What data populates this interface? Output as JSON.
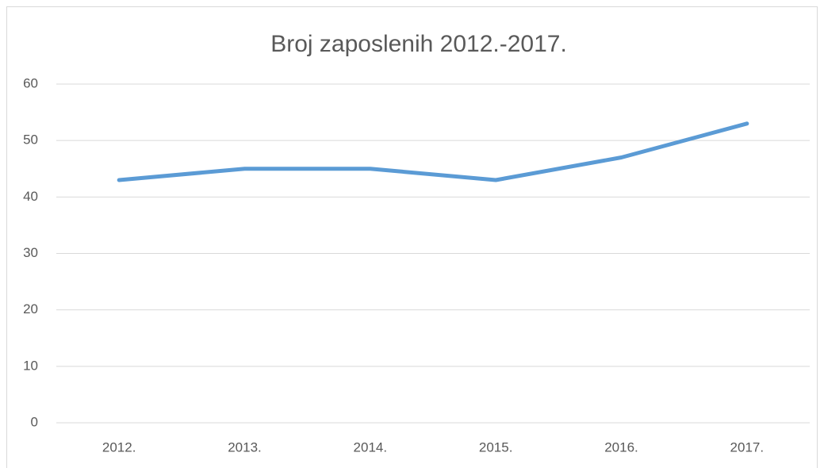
{
  "chart_data": {
    "type": "line",
    "title": "Broj zaposlenih 2012.-2017.",
    "categories": [
      "2012.",
      "2013.",
      "2014.",
      "2015.",
      "2016.",
      "2017."
    ],
    "series": [
      {
        "name": "Broj zaposlenih",
        "color": "#5b9bd5",
        "values": [
          43,
          45,
          45,
          43,
          47,
          53
        ]
      }
    ],
    "ylim": [
      0,
      60
    ],
    "yticks": [
      0,
      10,
      20,
      30,
      40,
      50,
      60
    ],
    "grid": true
  }
}
